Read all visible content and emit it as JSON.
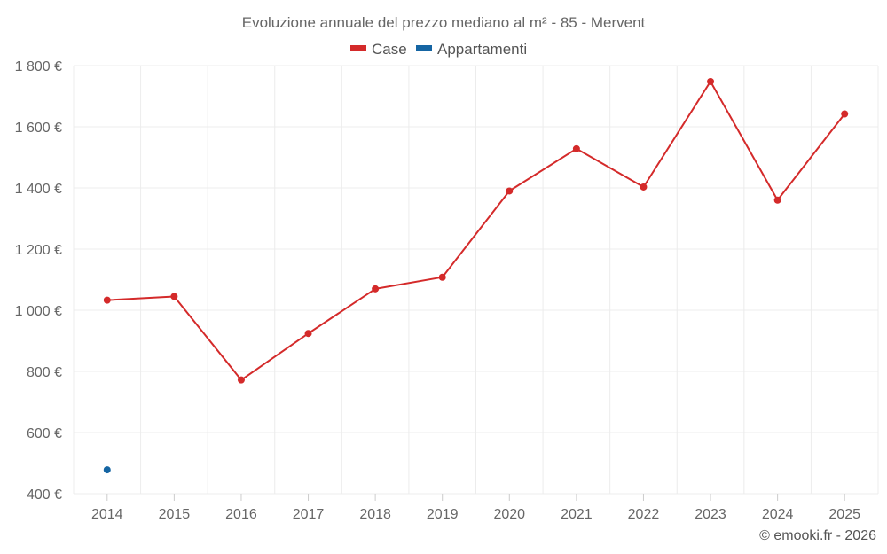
{
  "chart_data": {
    "type": "line",
    "title": "Evoluzione annuale del prezzo mediano al m² - 85 - Mervent",
    "categories": [
      "2014",
      "2015",
      "2016",
      "2017",
      "2018",
      "2019",
      "2020",
      "2021",
      "2022",
      "2023",
      "2024",
      "2025"
    ],
    "series": [
      {
        "name": "Case",
        "color": "#d42a2a",
        "values": [
          1033,
          1045,
          772,
          924,
          1070,
          1108,
          1390,
          1528,
          1403,
          1748,
          1360,
          1642
        ]
      },
      {
        "name": "Appartamenti",
        "color": "#1565a3",
        "values": [
          478,
          null,
          null,
          null,
          null,
          null,
          null,
          null,
          null,
          null,
          null,
          null
        ]
      }
    ],
    "ylim": [
      400,
      1800
    ],
    "yticks": [
      400,
      600,
      800,
      1000,
      1200,
      1400,
      1600,
      1800
    ],
    "ytick_labels": [
      "400 €",
      "600 €",
      "800 €",
      "1 000 €",
      "1 200 €",
      "1 400 €",
      "1 600 €",
      "1 800 €"
    ],
    "grid": true,
    "legend_position": "top-center",
    "xlabel": "",
    "ylabel": ""
  },
  "credit": "© emooki.fr - 2026"
}
